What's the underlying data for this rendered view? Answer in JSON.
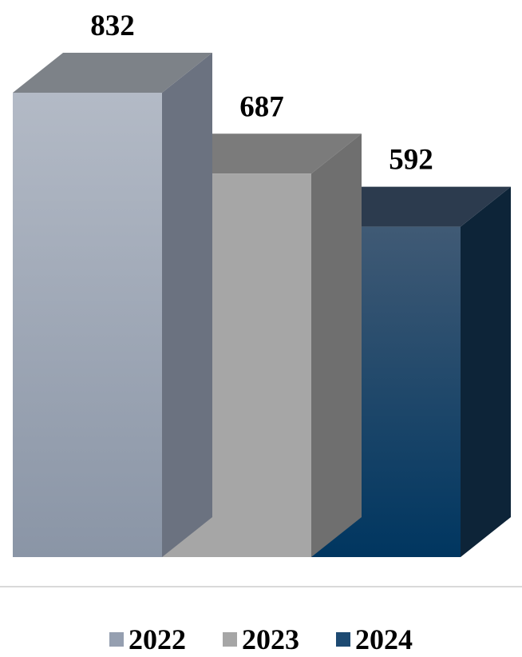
{
  "chart_data": {
    "type": "bar",
    "categories": [
      "2022",
      "2023",
      "2024"
    ],
    "values": [
      832,
      687,
      592
    ],
    "data_labels": [
      "832",
      "687",
      "592"
    ],
    "title": "",
    "xlabel": "",
    "ylabel": "",
    "ylim": [
      0,
      832
    ],
    "grid": false,
    "legend_position": "bottom",
    "colors": {
      "2022": {
        "front_top": "#b3bac6",
        "front_bottom": "#8a95a6",
        "side": "#6b7280",
        "top": "#7d8288"
      },
      "2023": {
        "front_top": "#a6a6a6",
        "front_bottom": "#a6a6a6",
        "side": "#6f6f6f",
        "top": "#7b7b7b"
      },
      "2024": {
        "front_top": "#405a75",
        "front_bottom": "#003660",
        "side": "#0d2438",
        "top": "#2c3b4e"
      }
    }
  },
  "legend": {
    "items": [
      {
        "label": "2022",
        "color": "#959fb0"
      },
      {
        "label": "2023",
        "color": "#a6a6a6"
      },
      {
        "label": "2024",
        "color": "#1d4a72"
      }
    ]
  }
}
